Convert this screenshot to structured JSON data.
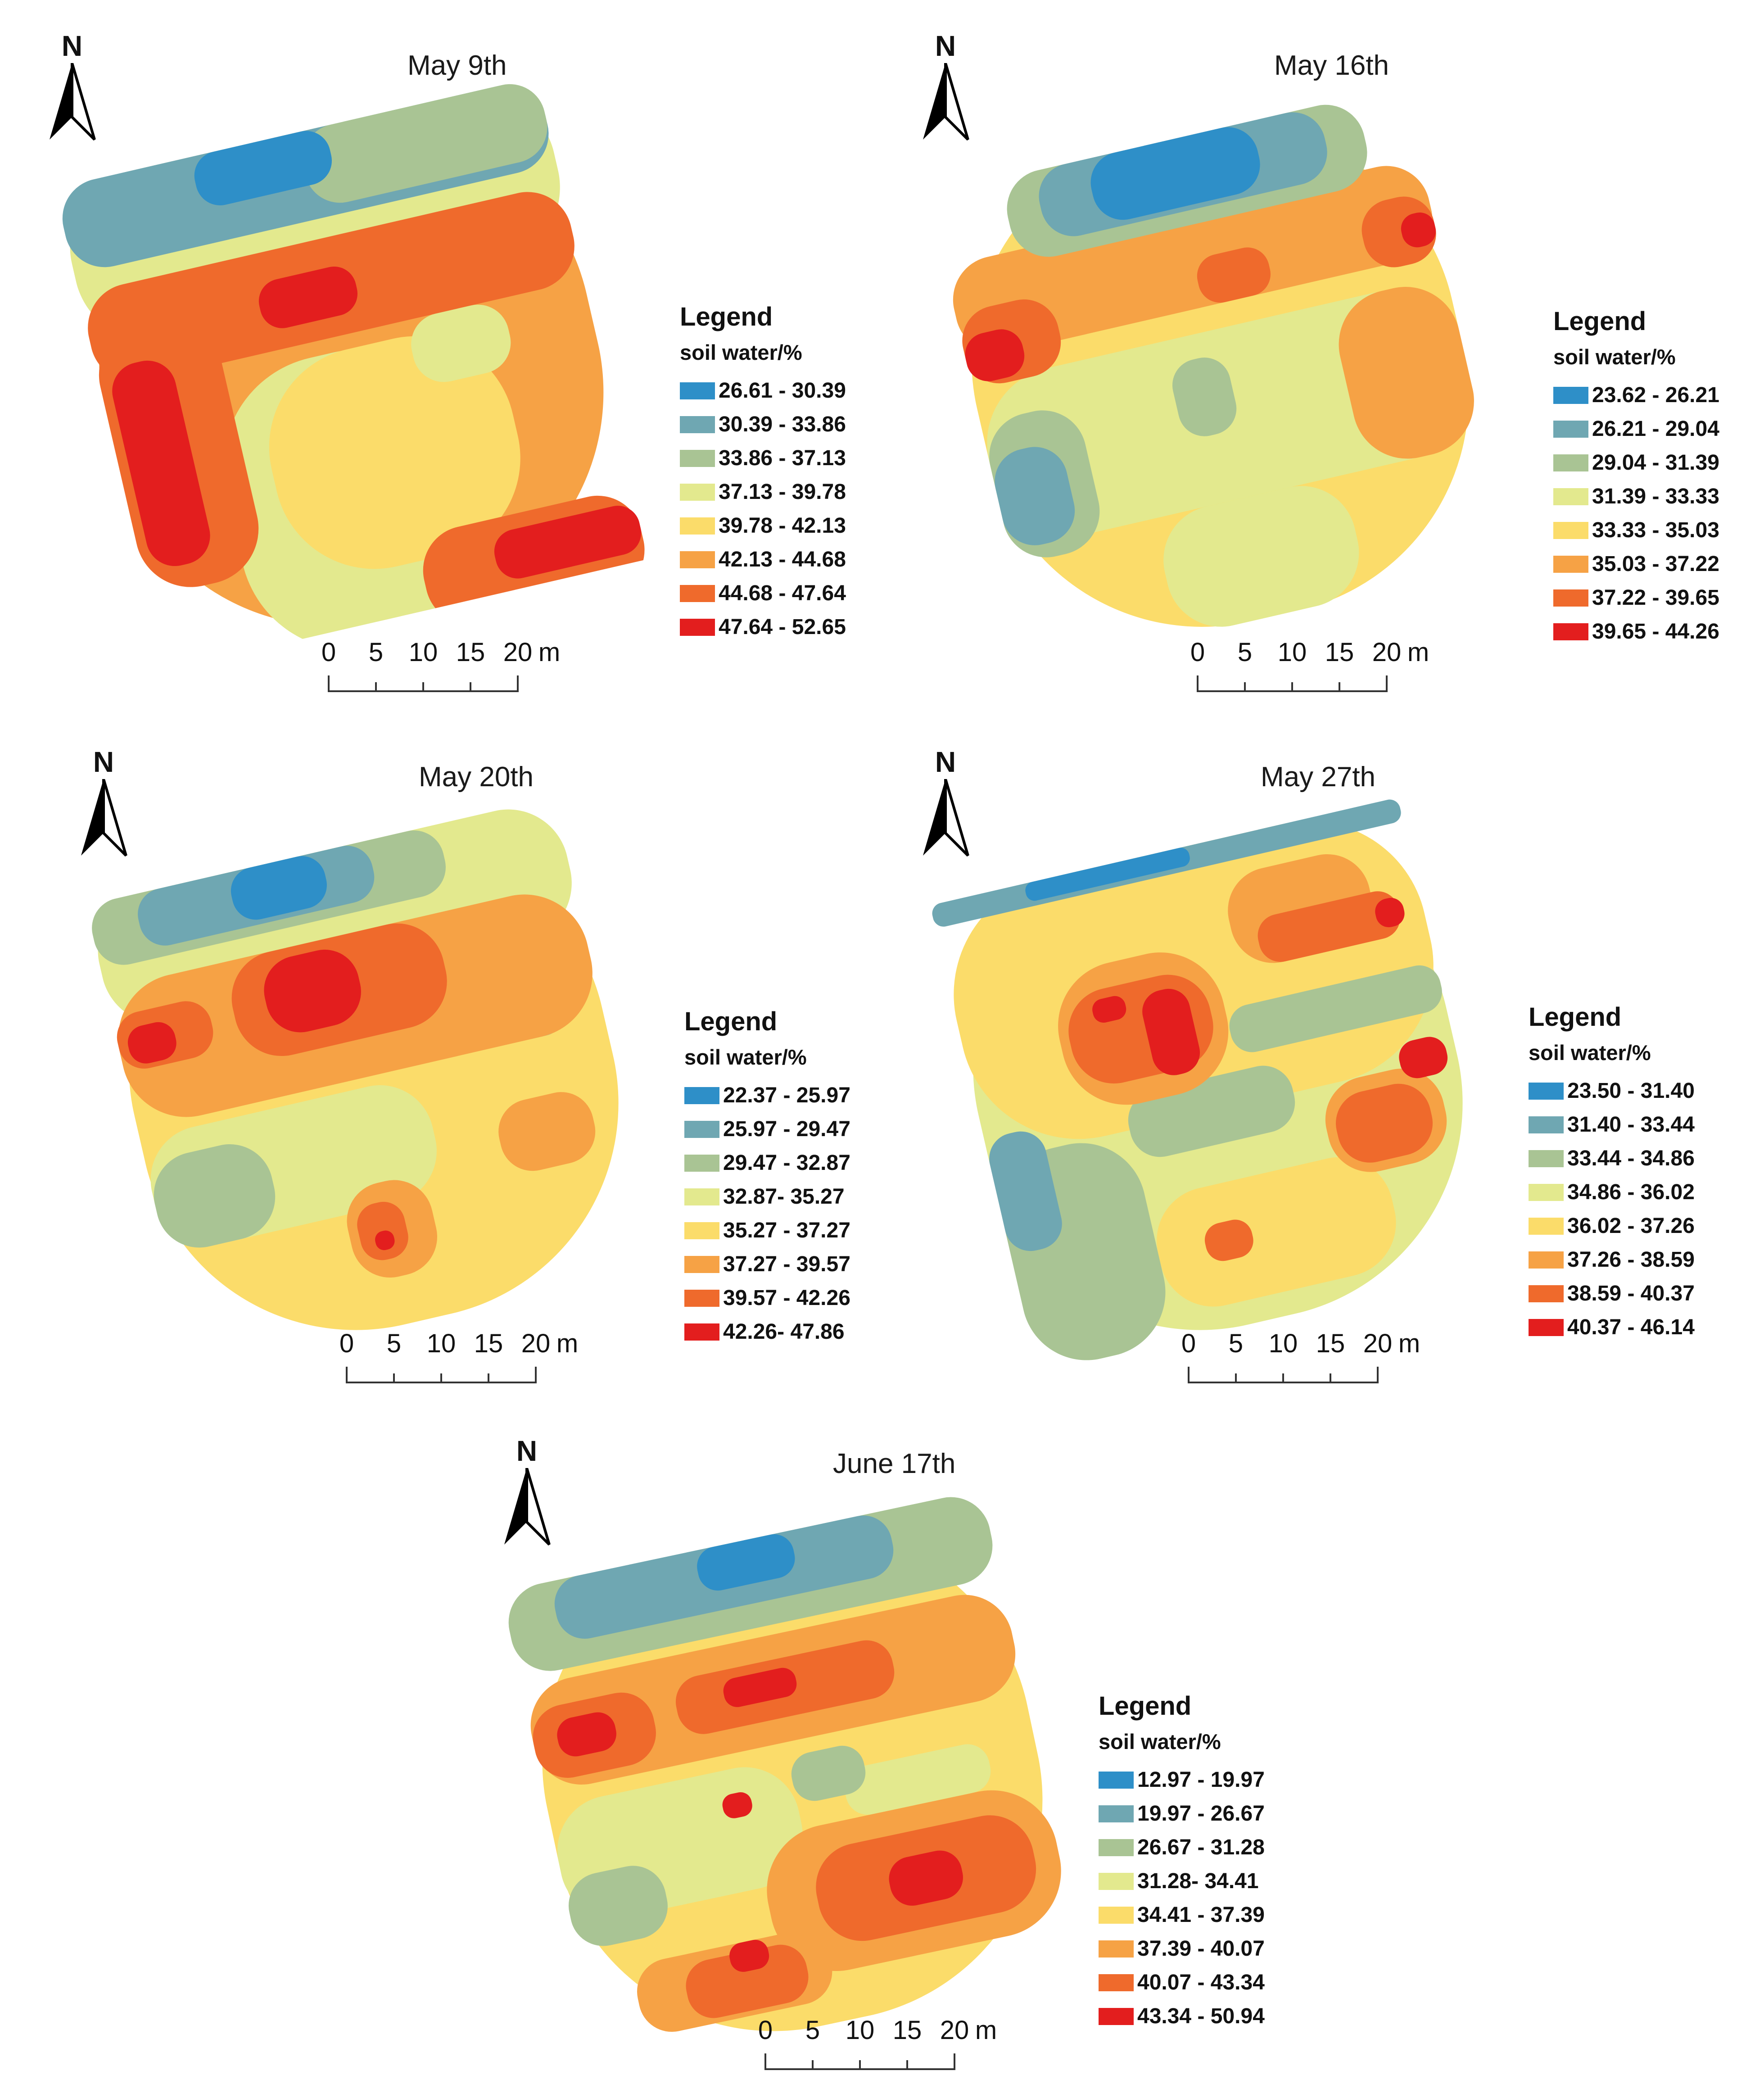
{
  "panels": [
    {
      "title": "May 9th",
      "legend": {
        "title": "Legend",
        "subtitle": "soil water/%",
        "classes": [
          {
            "range": "26.61 - 30.39",
            "color": "#2e8fc8"
          },
          {
            "range": "30.39 - 33.86",
            "color": "#6fa7b2"
          },
          {
            "range": "33.86 - 37.13",
            "color": "#a9c494"
          },
          {
            "range": "37.13 - 39.78",
            "color": "#e3e98e"
          },
          {
            "range": "39.78 - 42.13",
            "color": "#fbdc6a"
          },
          {
            "range": "42.13 - 44.68",
            "color": "#f6a245"
          },
          {
            "range": "44.68 - 47.64",
            "color": "#ef6a2c"
          },
          {
            "range": "47.64 - 52.65",
            "color": "#e31e1e"
          }
        ]
      }
    },
    {
      "title": "May 16th",
      "legend": {
        "title": "Legend",
        "subtitle": "soil water/%",
        "classes": [
          {
            "range": "23.62 - 26.21",
            "color": "#2e8fc8"
          },
          {
            "range": "26.21 - 29.04",
            "color": "#6fa7b2"
          },
          {
            "range": "29.04 - 31.39",
            "color": "#a9c494"
          },
          {
            "range": "31.39 - 33.33",
            "color": "#e3e98e"
          },
          {
            "range": "33.33 - 35.03",
            "color": "#fbdc6a"
          },
          {
            "range": "35.03 - 37.22",
            "color": "#f6a245"
          },
          {
            "range": "37.22 - 39.65",
            "color": "#ef6a2c"
          },
          {
            "range": "39.65 - 44.26",
            "color": "#e31e1e"
          }
        ]
      }
    },
    {
      "title": "May 20th",
      "legend": {
        "title": "Legend",
        "subtitle": "soil water/%",
        "classes": [
          {
            "range": "22.37 - 25.97",
            "color": "#2e8fc8"
          },
          {
            "range": "25.97 - 29.47",
            "color": "#6fa7b2"
          },
          {
            "range": "29.47 - 32.87",
            "color": "#a9c494"
          },
          {
            "range": "32.87- 35.27",
            "color": "#e3e98e"
          },
          {
            "range": "35.27 - 37.27",
            "color": "#fbdc6a"
          },
          {
            "range": "37.27 - 39.57",
            "color": "#f6a245"
          },
          {
            "range": "39.57 - 42.26",
            "color": "#ef6a2c"
          },
          {
            "range": "42.26- 47.86",
            "color": "#e31e1e"
          }
        ]
      }
    },
    {
      "title": "May 27th",
      "legend": {
        "title": "Legend",
        "subtitle": "soil water/%",
        "classes": [
          {
            "range": "23.50 - 31.40",
            "color": "#2e8fc8"
          },
          {
            "range": "31.40 - 33.44",
            "color": "#6fa7b2"
          },
          {
            "range": "33.44 - 34.86",
            "color": "#a9c494"
          },
          {
            "range": "34.86 - 36.02",
            "color": "#e3e98e"
          },
          {
            "range": "36.02 - 37.26",
            "color": "#fbdc6a"
          },
          {
            "range": "37.26 - 38.59",
            "color": "#f6a245"
          },
          {
            "range": "38.59 - 40.37",
            "color": "#ef6a2c"
          },
          {
            "range": "40.37 - 46.14",
            "color": "#e31e1e"
          }
        ]
      }
    },
    {
      "title": "June 17th",
      "legend": {
        "title": "Legend",
        "subtitle": "soil water/%",
        "classes": [
          {
            "range": "12.97 - 19.97",
            "color": "#2e8fc8"
          },
          {
            "range": "19.97 - 26.67",
            "color": "#6fa7b2"
          },
          {
            "range": "26.67 - 31.28",
            "color": "#a9c494"
          },
          {
            "range": "31.28- 34.41",
            "color": "#e3e98e"
          },
          {
            "range": "34.41 - 37.39",
            "color": "#fbdc6a"
          },
          {
            "range": "37.39 - 40.07",
            "color": "#f6a245"
          },
          {
            "range": "40.07 - 43.34",
            "color": "#ef6a2c"
          },
          {
            "range": "43.34 - 50.94",
            "color": "#e31e1e"
          }
        ]
      }
    }
  ],
  "north_label": "N",
  "north_icon": "north-arrow-icon",
  "scale_bar": {
    "ticks": [
      "0",
      "5",
      "10",
      "15",
      "20"
    ],
    "unit": "m"
  }
}
